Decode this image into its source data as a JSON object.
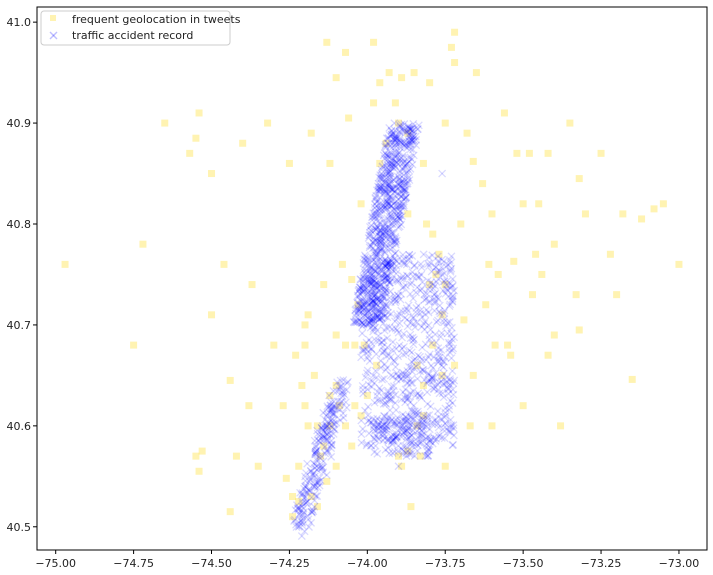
{
  "chart_data": {
    "type": "scatter",
    "title": "",
    "xlabel": "",
    "ylabel": "",
    "xlim": [
      -75.06,
      -72.91
    ],
    "ylim": [
      40.477,
      41.015
    ],
    "x_ticks": [
      -75.0,
      -74.75,
      -74.5,
      -74.25,
      -74.0,
      -73.75,
      -73.5,
      -73.25,
      -73.0
    ],
    "x_tick_labels": [
      "−75.00",
      "−74.75",
      "−74.50",
      "−74.25",
      "−74.00",
      "−73.75",
      "−73.50",
      "−73.25",
      "−73.00"
    ],
    "y_ticks": [
      40.5,
      40.6,
      40.7,
      40.8,
      40.9,
      41.0
    ],
    "y_tick_labels": [
      "40.5",
      "40.6",
      "40.7",
      "40.8",
      "40.9",
      "41.0"
    ],
    "grid": false,
    "legend": "upper-left",
    "series": [
      {
        "name": "frequent geolocation in tweets",
        "marker": "square",
        "color": "#FFD700",
        "alpha": 0.3,
        "points": [
          [
            -74.97,
            40.76
          ],
          [
            -74.55,
            40.885
          ],
          [
            -74.55,
            40.57
          ],
          [
            -74.54,
            40.555
          ],
          [
            -74.53,
            40.575
          ],
          [
            -74.44,
            40.645
          ],
          [
            -74.44,
            40.515
          ],
          [
            -74.37,
            40.74
          ],
          [
            -74.26,
            40.548
          ],
          [
            -74.24,
            40.51
          ],
          [
            -74.22,
            40.525
          ],
          [
            -74.24,
            40.53
          ],
          [
            -74.21,
            40.64
          ],
          [
            -74.2,
            40.7
          ],
          [
            -74.19,
            40.71
          ],
          [
            -74.2,
            40.68
          ],
          [
            -74.17,
            40.65
          ],
          [
            -74.16,
            40.6
          ],
          [
            -74.15,
            40.57
          ],
          [
            -74.12,
            40.63
          ],
          [
            -74.1,
            40.56
          ],
          [
            -74.1,
            40.64
          ],
          [
            -74.08,
            40.76
          ],
          [
            -74.05,
            40.745
          ],
          [
            -74.03,
            40.72
          ],
          [
            -74.1,
            40.945
          ],
          [
            -74.12,
            40.86
          ],
          [
            -74.06,
            40.905
          ],
          [
            -74.02,
            40.82
          ],
          [
            -73.98,
            40.92
          ],
          [
            -73.96,
            40.86
          ],
          [
            -73.93,
            40.95
          ],
          [
            -73.89,
            40.945
          ],
          [
            -73.9,
            40.9
          ],
          [
            -73.85,
            40.95
          ],
          [
            -73.82,
            40.86
          ],
          [
            -73.81,
            40.8
          ],
          [
            -73.79,
            40.79
          ],
          [
            -73.78,
            40.75
          ],
          [
            -73.75,
            40.74
          ],
          [
            -73.76,
            40.71
          ],
          [
            -73.79,
            40.68
          ],
          [
            -73.76,
            40.65
          ],
          [
            -73.82,
            40.61
          ],
          [
            -73.84,
            40.6
          ],
          [
            -73.87,
            40.575
          ],
          [
            -73.89,
            40.56
          ],
          [
            -73.9,
            40.57
          ],
          [
            -73.83,
            40.57
          ],
          [
            -73.73,
            40.975
          ],
          [
            -73.72,
            40.99
          ],
          [
            -73.72,
            40.96
          ],
          [
            -73.68,
            40.89
          ],
          [
            -73.66,
            40.862
          ],
          [
            -73.63,
            40.84
          ],
          [
            -73.61,
            40.76
          ],
          [
            -73.58,
            40.75
          ],
          [
            -73.55,
            40.68
          ],
          [
            -73.53,
            40.763
          ],
          [
            -73.52,
            40.87
          ],
          [
            -73.48,
            40.87
          ],
          [
            -73.45,
            40.82
          ],
          [
            -73.42,
            40.87
          ],
          [
            -73.4,
            40.69
          ],
          [
            -73.42,
            40.67
          ],
          [
            -73.33,
            40.73
          ],
          [
            -73.32,
            40.695
          ],
          [
            -73.32,
            40.845
          ],
          [
            -73.22,
            40.77
          ],
          [
            -73.12,
            40.805
          ],
          [
            -73.08,
            40.815
          ],
          [
            -73.15,
            40.646
          ],
          [
            -73.69,
            40.705
          ],
          [
            -73.66,
            40.65
          ],
          [
            -73.72,
            40.66
          ],
          [
            -73.67,
            40.6
          ],
          [
            -73.59,
            40.68
          ],
          [
            -73.54,
            40.67
          ],
          [
            -73.46,
            40.77
          ],
          [
            -73.4,
            40.78
          ],
          [
            -73.3,
            40.81
          ],
          [
            -73.62,
            40.72
          ],
          [
            -73.7,
            40.8
          ],
          [
            -73.6,
            40.81
          ],
          [
            -73.5,
            40.82
          ],
          [
            -73.44,
            40.75
          ],
          [
            -73.47,
            40.73
          ],
          [
            -73.82,
            40.64
          ],
          [
            -73.84,
            40.66
          ],
          [
            -73.97,
            40.66
          ],
          [
            -74.01,
            40.68
          ],
          [
            -74.04,
            40.62
          ],
          [
            -74.07,
            40.6
          ],
          [
            -74.13,
            40.545
          ],
          [
            -74.16,
            40.52
          ],
          [
            -74.18,
            40.53
          ],
          [
            -74.14,
            40.58
          ],
          [
            -74.12,
            40.6
          ],
          [
            -74.09,
            40.62
          ],
          [
            -74.05,
            40.58
          ],
          [
            -74.02,
            40.61
          ],
          [
            -74.0,
            40.63
          ],
          [
            -74.2,
            40.62
          ],
          [
            -74.19,
            40.6
          ],
          [
            -74.07,
            40.68
          ],
          [
            -74.04,
            40.68
          ],
          [
            -73.94,
            40.88
          ],
          [
            -73.91,
            40.92
          ],
          [
            -73.87,
            40.89
          ],
          [
            -73.87,
            40.81
          ],
          [
            -73.8,
            40.74
          ],
          [
            -73.77,
            40.77
          ],
          [
            -74.57,
            40.87
          ],
          [
            -74.65,
            40.9
          ],
          [
            -74.54,
            40.91
          ],
          [
            -74.75,
            40.68
          ],
          [
            -74.72,
            40.78
          ],
          [
            -74.5,
            40.85
          ],
          [
            -74.4,
            40.88
          ],
          [
            -74.32,
            40.9
          ],
          [
            -74.38,
            40.62
          ],
          [
            -74.42,
            40.57
          ],
          [
            -74.3,
            40.68
          ],
          [
            -74.25,
            40.86
          ],
          [
            -74.18,
            40.89
          ],
          [
            -74.13,
            40.98
          ],
          [
            -74.07,
            40.97
          ],
          [
            -73.98,
            40.98
          ],
          [
            -73.96,
            40.94
          ],
          [
            -73.8,
            40.94
          ],
          [
            -73.75,
            40.9
          ],
          [
            -73.65,
            40.95
          ],
          [
            -73.56,
            40.91
          ],
          [
            -73.35,
            40.9
          ],
          [
            -73.25,
            40.87
          ],
          [
            -73.18,
            40.81
          ],
          [
            -73.05,
            40.82
          ],
          [
            -73.0,
            40.76
          ],
          [
            -73.2,
            40.73
          ],
          [
            -73.38,
            40.6
          ],
          [
            -73.5,
            40.62
          ],
          [
            -73.6,
            40.6
          ],
          [
            -74.1,
            40.69
          ],
          [
            -74.14,
            40.74
          ],
          [
            -74.23,
            40.67
          ],
          [
            -74.27,
            40.62
          ],
          [
            -74.35,
            40.56
          ],
          [
            -74.46,
            40.76
          ],
          [
            -74.5,
            40.71
          ],
          [
            -73.86,
            40.52
          ],
          [
            -73.75,
            40.56
          ],
          [
            -74.22,
            40.56
          ]
        ]
      },
      {
        "name": "traffic accident record",
        "marker": "x",
        "color": "#0000FF",
        "alpha": 0.15,
        "points": [
          [
            -73.74,
            40.637
          ],
          [
            -73.76,
            40.85
          ],
          [
            -73.9,
            40.56
          ],
          [
            -73.87,
            40.575
          ],
          [
            -74.22,
            40.5
          ],
          [
            -74.2,
            40.54
          ],
          [
            -74.17,
            40.54
          ]
        ]
      }
    ]
  }
}
